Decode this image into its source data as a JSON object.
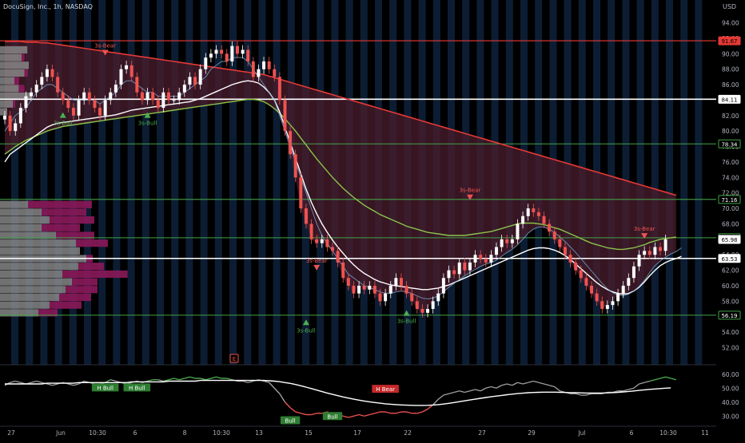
{
  "header": {
    "symbol_title": "DocuSign, Inc., 1h, NASDAQ",
    "currency": "USD"
  },
  "colors": {
    "background": "#000000",
    "session_band": "#0c1d33",
    "bull_candle": "#ffffff",
    "bear_candle": "#ef5350",
    "ema_fast": "#ffffff",
    "ema_slow": "#8bc34a",
    "ema_long": "#e53935",
    "cloud": "#4a1c2c",
    "level_white": "#ffffff",
    "level_green": "#43a047",
    "volume_profile_gray": "#8d8d8d",
    "volume_profile_magenta": "#8b1a5a",
    "rsi_line": "#9e9e9e",
    "rsi_ma": "#ffffff",
    "axis_text": "#b2b5be"
  },
  "price_axis": {
    "ticks": [
      "94.00",
      "92.00",
      "90.00",
      "88.00",
      "86.00",
      "84.00",
      "82.00",
      "80.00",
      "78.00",
      "76.00",
      "74.00",
      "72.00",
      "70.00",
      "68.00",
      "66.00",
      "64.00",
      "62.00",
      "60.00",
      "58.00",
      "56.00",
      "54.00",
      "52.00"
    ]
  },
  "price_labels": [
    {
      "text": "91.67",
      "price": 91.67,
      "style": "red"
    },
    {
      "text": "84.11",
      "price": 84.11,
      "style": "white"
    },
    {
      "text": "78.34",
      "price": 78.34,
      "style": "green"
    },
    {
      "text": "71.16",
      "price": 71.16,
      "style": "green"
    },
    {
      "text": "66.20",
      "price": 66.2,
      "style": "green"
    },
    {
      "text": "65.98",
      "price": 65.98,
      "style": "white"
    },
    {
      "text": "63.53",
      "price": 63.53,
      "style": "white"
    },
    {
      "text": "56.19",
      "price": 56.19,
      "style": "green"
    }
  ],
  "rsi_axis": {
    "ticks": [
      "60.00",
      "50.00",
      "40.00",
      "30.00"
    ]
  },
  "time_axis": {
    "ticks": [
      "27",
      "Jun",
      "10:30",
      "6",
      "8",
      "10:30",
      "13",
      "15",
      "17",
      "22",
      "27",
      "29",
      "Jul",
      "6",
      "10:30",
      "11"
    ]
  },
  "event_marker": {
    "label": "E"
  },
  "chart_data": {
    "type": "candlestick",
    "title": "DocuSign, Inc., 1h, NASDAQ",
    "xlabel": "",
    "ylabel": "USD",
    "ylim": [
      50.5,
      95.5
    ],
    "x_range": [
      0,
      124
    ],
    "series": [
      {
        "name": "",
        "type": "candlestick",
        "close": [
          82,
          80,
          81,
          83,
          84.5,
          85,
          86,
          87,
          88,
          87,
          85,
          84,
          83,
          82,
          84,
          85,
          84,
          83,
          82,
          84,
          85,
          86,
          88,
          88.5,
          87,
          85,
          84,
          85,
          84,
          83,
          85,
          84,
          84,
          85,
          86,
          87,
          86,
          88,
          89.5,
          90,
          90.5,
          90,
          89,
          91,
          90,
          90.5,
          89,
          87,
          88,
          89,
          88,
          87,
          84,
          80,
          77,
          74,
          70,
          68,
          66,
          65.5,
          66,
          65,
          64.5,
          63,
          61,
          60,
          59,
          60,
          59.5,
          60,
          59,
          58,
          59,
          60,
          61,
          60,
          59,
          58,
          57,
          56.5,
          57,
          58,
          59,
          61,
          62,
          61.5,
          63,
          62,
          63,
          64,
          63.5,
          63,
          64,
          65,
          66,
          65.5,
          66,
          68,
          69,
          70,
          69.5,
          69,
          68,
          67,
          66,
          65,
          64,
          63,
          62,
          61,
          60,
          59,
          58,
          57,
          57.5,
          58,
          59,
          60,
          61,
          62.5,
          64,
          64.5,
          64,
          65,
          64.5,
          66
        ]
      }
    ],
    "overlays": {
      "ema_fast": [
        80,
        81,
        82,
        82.5,
        83,
        84,
        85,
        85.5,
        86,
        86,
        85.5,
        85,
        84.5,
        84,
        84,
        84,
        84,
        84,
        83.5,
        84,
        84.5,
        85,
        86,
        86.5,
        86.5,
        86,
        85.5,
        85,
        85,
        84.5,
        84.5,
        84.5,
        84.5,
        84.5,
        85,
        85.5,
        86,
        86.5,
        87,
        88,
        88.5,
        89,
        89,
        89.5,
        89.5,
        89.5,
        89,
        88,
        87,
        86,
        85,
        84,
        82,
        80,
        78,
        76,
        74,
        72,
        70,
        68,
        66.5,
        65.5,
        64.5,
        63.5,
        62.5,
        61.5,
        61,
        60.5,
        60,
        59.8,
        59.5,
        59.2,
        59,
        59,
        59.2,
        59.3,
        59.2,
        59,
        58.7,
        58.4,
        58.3,
        58.4,
        58.7,
        59.2,
        59.8,
        60.3,
        60.8,
        61.3,
        61.7,
        62.1,
        62.5,
        62.8,
        63,
        63.3,
        63.8,
        64.3,
        64.7,
        65.3,
        66,
        66.8,
        67.3,
        67.6,
        67.6,
        67.3,
        66.9,
        66.3,
        65.7,
        65,
        64.3,
        63.5,
        62.7,
        61.9,
        61.1,
        60.3,
        59.6,
        59.1,
        58.8,
        58.7,
        58.9,
        59.3,
        59.9,
        60.7,
        61.7,
        62.6,
        63.2,
        63.7,
        64.1,
        64.4,
        64.9
      ]
    },
    "ema_fast_values": [
      76,
      77,
      77.5,
      78,
      78.5,
      79,
      79.5,
      80,
      80.5,
      80.8,
      81,
      81.1,
      81.2,
      81.3,
      81.4,
      81.5,
      81.6,
      81.7,
      81.8,
      81.9,
      82,
      82.1,
      82.3,
      82.5,
      82.7,
      82.8,
      82.9,
      83,
      83.1,
      83.2,
      83.3,
      83.4,
      83.5,
      83.6,
      83.7,
      83.8,
      84,
      84.2,
      84.5,
      84.8,
      85.1,
      85.4,
      85.7,
      86,
      86.2,
      86.4,
      86.5,
      86.4,
      86.2,
      85.7,
      85,
      84,
      82.5,
      80.5,
      78.5,
      76.5,
      74.5,
      72.5,
      70.8,
      69.3,
      68,
      66.9,
      65.9,
      65,
      64.2,
      63.4,
      62.7,
      62.1,
      61.6,
      61.2,
      60.8,
      60.5,
      60.3,
      60.1,
      60,
      59.9,
      59.8,
      59.7,
      59.6,
      59.5,
      59.5,
      59.6,
      59.7,
      59.9,
      60.1,
      60.4,
      60.7,
      61,
      61.3,
      61.6,
      61.9,
      62.2,
      62.5,
      62.8,
      63.1,
      63.4,
      63.7,
      64,
      64.3,
      64.6,
      64.8,
      64.9,
      64.9,
      64.8,
      64.6,
      64.3,
      63.9,
      63.4,
      62.8,
      62.2,
      61.6,
      61,
      60.4,
      59.9,
      59.5,
      59.2,
      59,
      58.9,
      59,
      59.3,
      59.8,
      60.5,
      61.3,
      62,
      62.6,
      63,
      63.3,
      63.5,
      63.8
    ],
    "ema_slow_values": [
      77,
      77.5,
      78,
      78.4,
      78.8,
      79.1,
      79.4,
      79.7,
      80,
      80.2,
      80.4,
      80.6,
      80.7,
      80.8,
      80.9,
      81,
      81.1,
      81.2,
      81.3,
      81.4,
      81.5,
      81.6,
      81.7,
      81.8,
      81.9,
      82,
      82.1,
      82.2,
      82.3,
      82.4,
      82.5,
      82.6,
      82.7,
      82.8,
      82.9,
      83,
      83.1,
      83.2,
      83.3,
      83.4,
      83.5,
      83.6,
      83.7,
      83.8,
      83.9,
      84,
      84.1,
      84.1,
      84,
      83.8,
      83.4,
      82.9,
      82.3,
      81.6,
      80.8,
      80,
      79.1,
      78.2,
      77.3,
      76.4,
      75.6,
      74.8,
      74,
      73.3,
      72.6,
      72,
      71.4,
      70.9,
      70.4,
      70,
      69.6,
      69.2,
      68.9,
      68.6,
      68.3,
      68,
      67.7,
      67.5,
      67.3,
      67.1,
      66.9,
      66.8,
      66.7,
      66.6,
      66.5,
      66.5,
      66.5,
      66.5,
      66.6,
      66.7,
      66.8,
      66.9,
      67,
      67.2,
      67.4,
      67.6,
      67.8,
      68,
      68.1,
      68.1,
      68.1,
      68,
      67.9,
      67.7,
      67.5,
      67.3,
      67,
      66.7,
      66.4,
      66.1,
      65.8,
      65.5,
      65.3,
      65.1,
      64.9,
      64.8,
      64.7,
      64.7,
      64.8,
      64.9,
      65.1,
      65.3,
      65.6,
      65.8,
      66,
      66.1,
      66.2,
      66.3
    ],
    "ema_long_values": [
      91.6,
      91.6,
      91.6,
      91.6,
      91.5,
      91.5,
      91.5,
      91.4,
      91.4,
      91.3,
      91.2,
      91.1,
      91,
      90.9,
      90.8,
      90.7,
      90.6,
      90.5,
      90.4,
      90.3,
      90.2,
      90.1,
      90,
      89.9,
      89.8,
      89.7,
      89.6,
      89.5,
      89.4,
      89.3,
      89.2,
      89.1,
      89,
      88.9,
      88.8,
      88.7,
      88.6,
      88.5,
      88.4,
      88.3,
      88.2,
      88.1,
      88,
      87.9,
      87.8,
      87.7,
      87.6,
      87.5,
      87.4,
      87.3,
      87.1,
      86.9,
      86.7,
      86.5,
      86.3,
      86.1,
      85.9,
      85.7,
      85.5,
      85.3,
      85.1,
      84.9,
      84.7,
      84.5,
      84.3,
      84.1,
      83.9,
      83.7,
      83.5,
      83.3,
      83.1,
      82.9,
      82.7,
      82.5,
      82.3,
      82.1,
      81.9,
      81.7,
      81.5,
      81.3,
      81.1,
      80.9,
      80.7,
      80.5,
      80.3,
      80.1,
      79.9,
      79.7,
      79.5,
      79.3,
      79.1,
      78.9,
      78.7,
      78.5,
      78.3,
      78.1,
      77.9,
      77.7,
      77.5,
      77.3,
      77.1,
      76.9,
      76.7,
      76.5,
      76.3,
      76.1,
      75.9,
      75.7,
      75.5,
      75.3,
      75.1,
      74.9,
      74.7,
      74.5,
      74.3,
      74.1,
      73.9,
      73.7,
      73.5,
      73.3,
      73.1,
      72.9,
      72.7,
      72.5,
      72.3,
      72.1,
      71.9,
      71.7
    ],
    "horizontal_levels": [
      {
        "price": 91.67,
        "style": "red"
      },
      {
        "price": 84.11,
        "style": "white"
      },
      {
        "price": 78.34,
        "style": "green"
      },
      {
        "price": 71.16,
        "style": "green"
      },
      {
        "price": 66.2,
        "style": "green"
      },
      {
        "price": 63.53,
        "style": "white"
      },
      {
        "price": 56.19,
        "style": "green"
      }
    ],
    "annotations": [
      {
        "text": "3s-Bear",
        "x": 19,
        "price": 90.8,
        "kind": "bear"
      },
      {
        "text": "3s-Bull",
        "x": 11,
        "price": 81.4,
        "kind": "bull"
      },
      {
        "text": "3s-Bull",
        "x": 27,
        "price": 81.4,
        "kind": "bull"
      },
      {
        "text": "3s-Bear",
        "x": 59,
        "price": 63.0,
        "kind": "bear"
      },
      {
        "text": "3s-Bull",
        "x": 57,
        "price": 54.6,
        "kind": "bull"
      },
      {
        "text": "3s-Bull",
        "x": 76,
        "price": 55.8,
        "kind": "bull"
      },
      {
        "text": "3s-Bear",
        "x": 88,
        "price": 72.1,
        "kind": "bear"
      },
      {
        "text": "3s-Bear",
        "x": 121,
        "price": 67.1,
        "kind": "bear"
      }
    ],
    "volume_profile_top": [
      {
        "price": 90.5,
        "gray": 38,
        "magenta": 0
      },
      {
        "price": 89.5,
        "gray": 30,
        "magenta": 5
      },
      {
        "price": 88.5,
        "gray": 40,
        "magenta": 0
      },
      {
        "price": 87.5,
        "gray": 34,
        "magenta": 6
      },
      {
        "price": 86.5,
        "gray": 20,
        "magenta": 8
      },
      {
        "price": 85.5,
        "gray": 26,
        "magenta": 10
      },
      {
        "price": 84.5,
        "gray": 44,
        "magenta": 0
      },
      {
        "price": 83.5,
        "gray": 18,
        "magenta": 4
      },
      {
        "price": 82.5,
        "gray": 10,
        "magenta": 0
      }
    ],
    "volume_profile_bottom": [
      {
        "price": 70.5,
        "gray": 35,
        "magenta": 100
      },
      {
        "price": 69.5,
        "gray": 52,
        "magenta": 70
      },
      {
        "price": 68.5,
        "gray": 62,
        "magenta": 70
      },
      {
        "price": 67.5,
        "gray": 52,
        "magenta": 60
      },
      {
        "price": 66.5,
        "gray": 70,
        "magenta": 60
      },
      {
        "price": 65.5,
        "gray": 95,
        "magenta": 50
      },
      {
        "price": 64.5,
        "gray": 100,
        "magenta": 0
      },
      {
        "price": 63.5,
        "gray": 108,
        "magenta": 10
      },
      {
        "price": 62.5,
        "gray": 98,
        "magenta": 40
      },
      {
        "price": 61.5,
        "gray": 78,
        "magenta": 102
      },
      {
        "price": 60.5,
        "gray": 90,
        "magenta": 40
      },
      {
        "price": 59.5,
        "gray": 82,
        "magenta": 50
      },
      {
        "price": 58.5,
        "gray": 74,
        "magenta": 50
      },
      {
        "price": 57.5,
        "gray": 62,
        "magenta": 50
      },
      {
        "price": 56.5,
        "gray": 48,
        "magenta": 30
      }
    ],
    "rsi": {
      "ylim": [
        25,
        65
      ],
      "values": [
        52,
        54,
        55,
        54,
        53,
        54,
        55,
        54,
        53,
        52,
        53,
        54,
        53,
        52,
        53,
        55,
        54,
        53,
        53,
        54,
        56,
        55,
        54,
        53,
        54,
        55,
        54,
        55,
        56,
        56,
        55,
        56,
        57,
        56,
        57,
        58,
        57,
        57,
        56,
        57,
        58,
        57,
        57,
        56,
        55,
        55,
        54,
        55,
        56,
        55,
        54,
        50,
        46,
        40,
        36,
        33,
        32,
        31,
        31,
        32,
        32,
        33,
        31,
        31,
        30,
        29,
        30,
        31,
        30,
        31,
        32,
        33,
        33,
        32,
        32,
        33,
        33,
        32,
        32,
        33,
        35,
        38,
        42,
        45,
        46,
        47,
        48,
        47,
        48,
        49,
        48,
        50,
        51,
        50,
        52,
        53,
        52,
        54,
        53,
        54,
        55,
        54,
        53,
        52,
        51,
        48,
        47,
        46,
        46,
        45,
        45,
        46,
        46,
        46,
        47,
        47,
        48,
        48,
        49,
        50,
        53,
        54,
        55,
        56,
        57,
        58,
        57,
        56
      ],
      "ma": [
        53,
        53,
        53,
        53,
        53,
        53,
        53,
        53,
        53.5,
        53.5,
        53.5,
        53.5,
        53.5,
        53.5,
        54,
        54,
        54,
        54,
        54,
        54,
        54,
        54,
        54,
        54,
        54.5,
        54.5,
        54.5,
        54.5,
        54.5,
        54.5,
        54.5,
        55,
        55,
        55,
        55,
        55,
        55,
        55.5,
        55.5,
        55.5,
        55.5,
        55.5,
        55.5,
        55.5,
        55.5,
        55.5,
        55.5,
        55.5,
        55.5,
        55.5,
        55.3,
        55,
        54.6,
        54,
        53.4,
        52.6,
        51.7,
        50.7,
        49.7,
        48.6,
        47.5,
        46.5,
        45.5,
        44.6,
        43.7,
        42.9,
        42.1,
        41.4,
        40.8,
        40.2,
        39.7,
        39.2,
        38.8,
        38.5,
        38.2,
        38,
        37.8,
        37.7,
        37.6,
        37.6,
        37.7,
        37.9,
        38.2,
        38.6,
        39.1,
        39.7,
        40.3,
        40.9,
        41.5,
        42.1,
        42.7,
        43.3,
        43.8,
        44.3,
        44.8,
        45.3,
        45.7,
        46.1,
        46.4,
        46.7,
        46.9,
        47,
        47.1,
        47.1,
        47.1,
        47,
        46.9,
        46.8,
        46.7,
        46.6,
        46.5,
        46.5,
        46.5,
        46.5,
        46.6,
        46.8,
        47,
        47.3,
        47.6,
        48,
        48.4,
        48.8,
        49.1,
        49.4,
        49.7,
        50,
        50.2
      ],
      "labels": [
        {
          "text": "H Bull",
          "x": 19,
          "value": 50.5,
          "kind": "bull"
        },
        {
          "text": "H Bull",
          "x": 25,
          "value": 50.5,
          "kind": "bull"
        },
        {
          "text": "H Bear",
          "x": 72,
          "value": 49.5,
          "kind": "bear"
        },
        {
          "text": "Bull",
          "x": 54,
          "value": 27,
          "kind": "bull"
        },
        {
          "text": "Bull",
          "x": 62,
          "value": 30,
          "kind": "bull"
        }
      ]
    }
  }
}
